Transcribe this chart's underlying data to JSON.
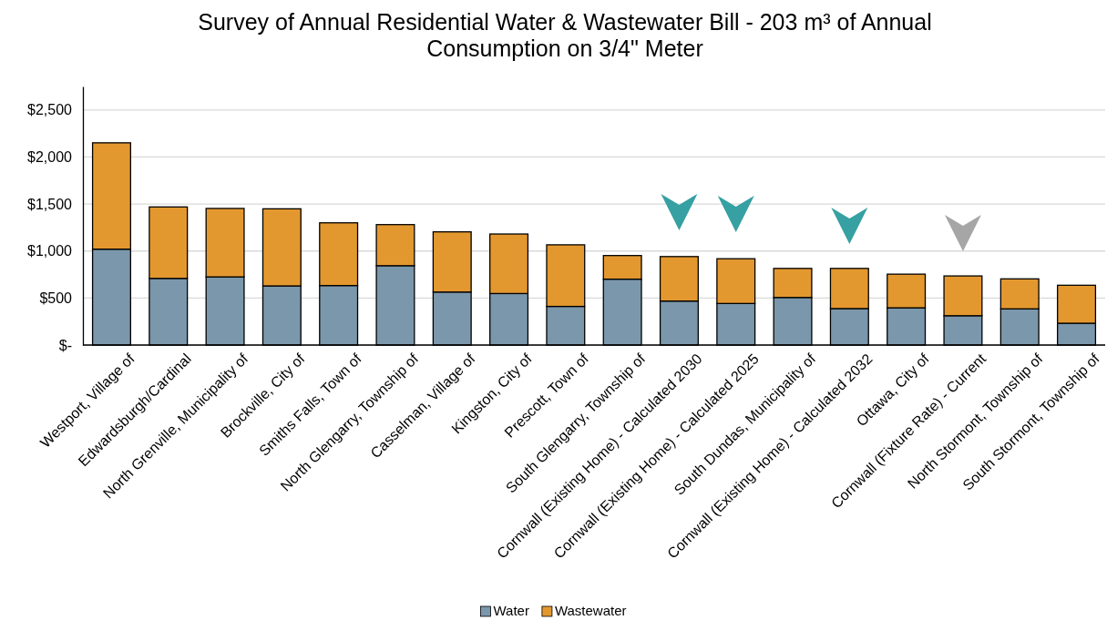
{
  "chart_data": {
    "type": "bar",
    "stacked": true,
    "title": "Survey of Annual Residential Water & Wastewater Bill - 203 m³ of Annual Consumption on 3/4\" Meter",
    "categories": [
      "Westport, Village of",
      "Edwardsburgh/Cardinal",
      "North Grenville, Municipality of",
      "Brockville, City of",
      "Smiths Falls, Town of",
      "North Glengarry, Township of",
      "Casselman, Village of",
      "Kingston, City of",
      "Prescott, Town of",
      "South Glengarry, Township of",
      "Cornwall (Existing Home) - Calculated 2030",
      "Cornwall (Existing Home) - Calculated 2025",
      "South Dundas, Municipality of",
      "Cornwall (Existing Home) - Calculated 2032",
      "Ottawa, City of",
      "Cornwall (Fixture Rate) - Current",
      "North Stormont, Township of",
      "South Stormont, Township of"
    ],
    "series": [
      {
        "name": "Water",
        "color": "#7b97ab",
        "values": [
          1020,
          709,
          725,
          629,
          633,
          844,
          564,
          548,
          411,
          701,
          468,
          442,
          506,
          388,
          396,
          312,
          385,
          232
        ]
      },
      {
        "name": "Wastewater",
        "color": "#e3982f",
        "values": [
          1131,
          760,
          728,
          820,
          667,
          437,
          640,
          633,
          655,
          251,
          473,
          476,
          309,
          427,
          358,
          423,
          319,
          404
        ]
      }
    ],
    "ylim": [
      0,
      2750
    ],
    "yticks": [
      {
        "value": 0,
        "label": "$-"
      },
      {
        "value": 500,
        "label": "$500"
      },
      {
        "value": 1000,
        "label": "$1,000"
      },
      {
        "value": 1500,
        "label": "$1,500"
      },
      {
        "value": 2000,
        "label": "$2,000"
      },
      {
        "value": 2500,
        "label": "$2,500"
      }
    ],
    "grid": "y",
    "legend": "bottom"
  }
}
